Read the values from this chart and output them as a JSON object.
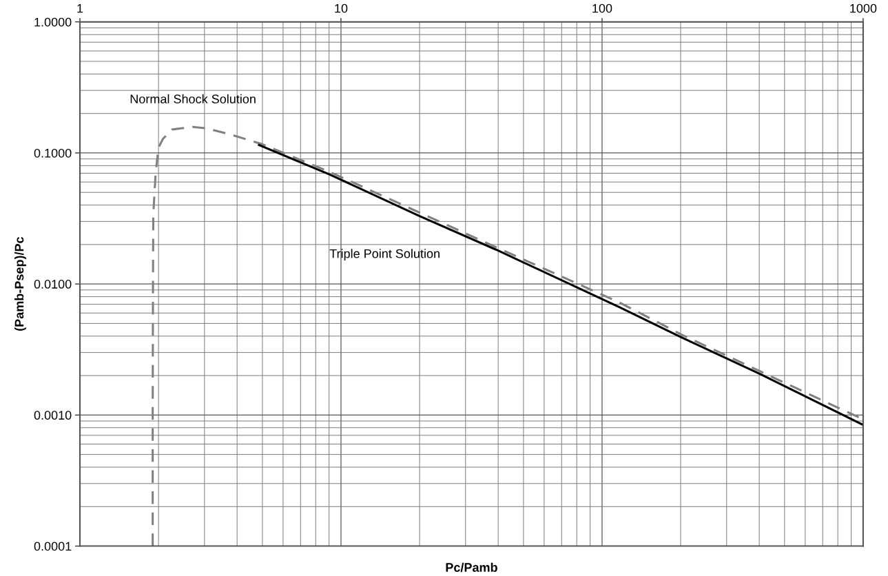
{
  "chart_data": {
    "type": "line",
    "xlabel": "Pc/Pamb",
    "ylabel": "(Pamb-Psep)/Pc",
    "log": "xy",
    "grid": true,
    "legend": false,
    "xlim": [
      1,
      1000
    ],
    "xticks": [
      1,
      10,
      100,
      1000
    ],
    "ylim": [
      0.0001,
      1
    ],
    "yticks": [
      {
        "value": 0.0001,
        "label": "0.0001"
      },
      {
        "value": 0.001,
        "label": "0.0010"
      },
      {
        "value": 0.01,
        "label": "0.0100"
      },
      {
        "value": 0.1,
        "label": "0.1000"
      },
      {
        "value": 1,
        "label": "1.0000"
      }
    ],
    "series": [
      {
        "name": "Normal Shock Solution",
        "color": "#808080",
        "line_style": "dashed",
        "x": [
          1.9,
          1.9,
          1.905,
          1.91,
          1.95,
          2.0,
          2.08,
          2.25,
          2.71,
          3.06,
          3.74,
          4.97,
          9.1,
          39.2,
          117,
          202,
          402,
          962
        ],
        "values": [
          0.0001,
          0.001,
          0.01,
          0.034,
          0.07,
          0.11,
          0.128,
          0.151,
          0.158,
          0.154,
          0.139,
          0.117,
          0.0713,
          0.0191,
          0.0072,
          0.0041,
          0.00216,
          0.00096
        ]
      },
      {
        "name": "Triple Point Solution",
        "color": "#000000",
        "line_style": "solid",
        "x": [
          4.85,
          9.03,
          20,
          39.2,
          117,
          202,
          402,
          1000
        ],
        "values": [
          0.115,
          0.0686,
          0.033,
          0.0183,
          0.00662,
          0.0039,
          0.00206,
          0.00084
        ]
      }
    ]
  }
}
